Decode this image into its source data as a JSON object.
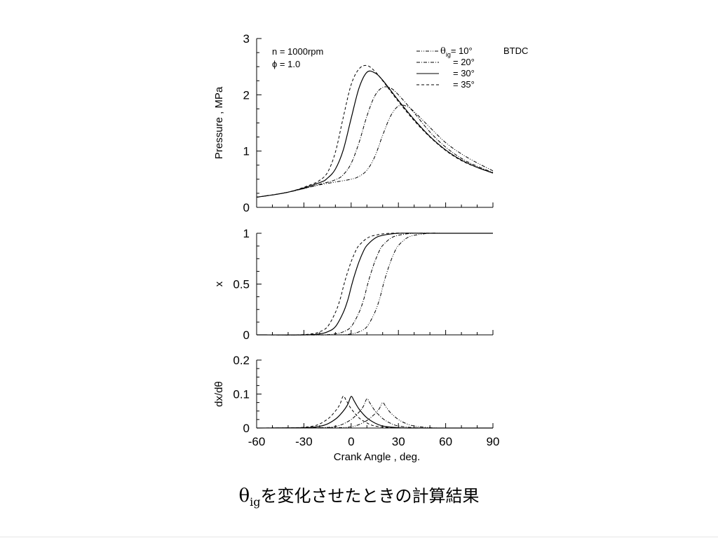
{
  "caption": {
    "symbol": "θ",
    "subscript": "ig",
    "text": "を変化させたときの計算結果"
  },
  "conditions": [
    "n = 1000rpm",
    "ϕ = 1.0"
  ],
  "legend": {
    "header_symbol": "θ",
    "header_subscript": "ig",
    "suffix": "BTDC",
    "entries": [
      "= 10°",
      "= 20°",
      "= 30°",
      "= 35°"
    ]
  },
  "chart_data": [
    {
      "type": "line",
      "ylabel": "Pressure , MPa",
      "xlim": [
        -60,
        90
      ],
      "ylim": [
        0,
        3
      ],
      "yticks": [
        "0",
        "1",
        "2",
        "3"
      ],
      "series": [
        {
          "name": "θig = 10°",
          "style": "dashdotdot",
          "x": [
            -60,
            -40,
            -20,
            -10,
            0,
            5,
            10,
            15,
            20,
            25,
            30,
            35,
            40,
            50,
            60,
            70,
            80,
            90
          ],
          "y": [
            0.18,
            0.27,
            0.4,
            0.45,
            0.5,
            0.55,
            0.66,
            0.9,
            1.28,
            1.62,
            1.8,
            1.8,
            1.7,
            1.42,
            1.15,
            0.95,
            0.79,
            0.65
          ]
        },
        {
          "name": "θig = 20°",
          "style": "dashdot",
          "x": [
            -60,
            -40,
            -20,
            -10,
            -5,
            0,
            5,
            10,
            15,
            20,
            25,
            30,
            40,
            50,
            60,
            70,
            80,
            90
          ],
          "y": [
            0.18,
            0.27,
            0.41,
            0.49,
            0.58,
            0.78,
            1.15,
            1.62,
            1.98,
            2.13,
            2.12,
            2.0,
            1.68,
            1.34,
            1.07,
            0.87,
            0.73,
            0.62
          ]
        },
        {
          "name": "θig = 30°",
          "style": "solid",
          "x": [
            -60,
            -40,
            -20,
            -15,
            -10,
            -5,
            0,
            5,
            10,
            15,
            20,
            30,
            40,
            50,
            60,
            70,
            80,
            90
          ],
          "y": [
            0.18,
            0.27,
            0.44,
            0.52,
            0.68,
            1.02,
            1.58,
            2.12,
            2.4,
            2.39,
            2.26,
            1.9,
            1.56,
            1.26,
            1.02,
            0.84,
            0.71,
            0.61
          ]
        },
        {
          "name": "θig = 35°",
          "style": "dashed",
          "x": [
            -60,
            -40,
            -25,
            -20,
            -15,
            -10,
            -5,
            0,
            5,
            10,
            15,
            20,
            30,
            40,
            50,
            60,
            70,
            80,
            90
          ],
          "y": [
            0.18,
            0.27,
            0.41,
            0.48,
            0.62,
            0.98,
            1.6,
            2.18,
            2.46,
            2.52,
            2.42,
            2.25,
            1.88,
            1.54,
            1.25,
            1.01,
            0.83,
            0.71,
            0.61
          ]
        }
      ]
    },
    {
      "type": "line",
      "ylabel": "x",
      "xlim": [
        -60,
        90
      ],
      "ylim": [
        0,
        1
      ],
      "yticks": [
        "0",
        "0.5",
        "1"
      ],
      "series": [
        {
          "name": "θig = 10°",
          "style": "dashdotdot",
          "x": [
            -60,
            -10,
            0,
            5,
            10,
            15,
            18,
            20,
            22,
            25,
            28,
            30,
            35,
            40,
            50,
            60,
            90
          ],
          "y": [
            0,
            0,
            0.01,
            0.03,
            0.08,
            0.22,
            0.35,
            0.47,
            0.58,
            0.72,
            0.83,
            0.88,
            0.95,
            0.98,
            1,
            1,
            1
          ]
        },
        {
          "name": "θig = 20°",
          "style": "dashdot",
          "x": [
            -60,
            -20,
            -10,
            -5,
            0,
            5,
            8,
            10,
            12,
            15,
            18,
            20,
            25,
            30,
            40,
            60,
            90
          ],
          "y": [
            0,
            0,
            0.01,
            0.03,
            0.08,
            0.22,
            0.35,
            0.47,
            0.58,
            0.72,
            0.83,
            0.88,
            0.95,
            0.98,
            1,
            1,
            1
          ]
        },
        {
          "name": "θig = 30°",
          "style": "solid",
          "x": [
            -60,
            -30,
            -20,
            -15,
            -10,
            -5,
            -2,
            0,
            2,
            5,
            8,
            10,
            15,
            20,
            30,
            50,
            90
          ],
          "y": [
            0,
            0,
            0.01,
            0.03,
            0.08,
            0.22,
            0.35,
            0.47,
            0.58,
            0.72,
            0.83,
            0.88,
            0.95,
            0.98,
            1,
            1,
            1
          ]
        },
        {
          "name": "θig = 35°",
          "style": "dashed",
          "x": [
            -60,
            -35,
            -25,
            -20,
            -15,
            -10,
            -7,
            -5,
            -3,
            0,
            3,
            5,
            10,
            15,
            25,
            45,
            90
          ],
          "y": [
            0,
            0,
            0.01,
            0.03,
            0.08,
            0.22,
            0.35,
            0.47,
            0.58,
            0.72,
            0.83,
            0.88,
            0.95,
            0.98,
            1,
            1,
            1
          ]
        }
      ]
    },
    {
      "type": "line",
      "ylabel": "dx/dθ",
      "xlim": [
        -60,
        90
      ],
      "ylim": [
        0,
        0.2
      ],
      "yticks": [
        "0",
        "0.1",
        "0.2"
      ],
      "xticks": [
        "-60",
        "-30",
        "0",
        "30",
        "60",
        "90"
      ],
      "xlabel": "Crank Angle , deg.",
      "series": [
        {
          "name": "θig = 10°",
          "style": "dashdotdot",
          "x": [
            -60,
            -10,
            0,
            5,
            10,
            13,
            16,
            18,
            20,
            22,
            25,
            30,
            35,
            40,
            50,
            60,
            90
          ],
          "y": [
            0,
            0.001,
            0.004,
            0.01,
            0.022,
            0.033,
            0.046,
            0.058,
            0.075,
            0.063,
            0.045,
            0.025,
            0.013,
            0.006,
            0.001,
            0,
            0
          ]
        },
        {
          "name": "θig = 20°",
          "style": "dashdot",
          "x": [
            -60,
            -20,
            -10,
            -5,
            0,
            3,
            6,
            8,
            10,
            12,
            15,
            20,
            25,
            30,
            40,
            50,
            90
          ],
          "y": [
            0,
            0.001,
            0.005,
            0.012,
            0.025,
            0.037,
            0.052,
            0.066,
            0.086,
            0.073,
            0.052,
            0.028,
            0.014,
            0.006,
            0.001,
            0,
            0
          ]
        },
        {
          "name": "θig = 30°",
          "style": "solid",
          "x": [
            -60,
            -30,
            -20,
            -15,
            -10,
            -7,
            -4,
            -2,
            0,
            2,
            5,
            10,
            15,
            20,
            30,
            40,
            90
          ],
          "y": [
            0,
            0.001,
            0.005,
            0.012,
            0.026,
            0.039,
            0.056,
            0.071,
            0.093,
            0.079,
            0.056,
            0.03,
            0.015,
            0.006,
            0.001,
            0,
            0
          ]
        },
        {
          "name": "θig = 35°",
          "style": "dashed",
          "x": [
            -60,
            -35,
            -25,
            -20,
            -15,
            -12,
            -9,
            -7,
            -5,
            -3,
            0,
            5,
            10,
            15,
            25,
            35,
            90
          ],
          "y": [
            0,
            0.001,
            0.005,
            0.012,
            0.026,
            0.039,
            0.056,
            0.071,
            0.094,
            0.08,
            0.057,
            0.03,
            0.015,
            0.006,
            0.001,
            0,
            0
          ]
        }
      ]
    }
  ]
}
